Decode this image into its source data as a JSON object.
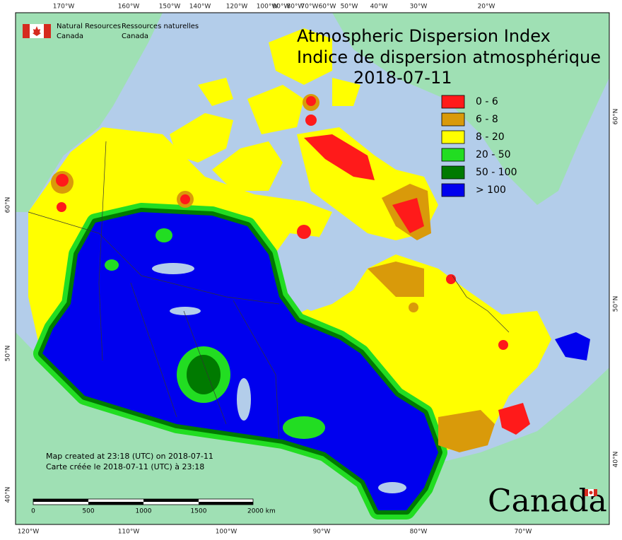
{
  "header": {
    "agency_en": [
      "Natural Resources",
      "Canada"
    ],
    "agency_fr": [
      "Ressources naturelles",
      "Canada"
    ],
    "title_en": "Atmospheric Dispersion Index",
    "title_fr": "Indice de dispersion atmosphérique",
    "date": "2018-07-11"
  },
  "legend": {
    "items": [
      {
        "label": "0 - 6",
        "color": "#ff1a1a"
      },
      {
        "label": "6 - 8",
        "color": "#d99a0a"
      },
      {
        "label": "8 - 20",
        "color": "#ffff00"
      },
      {
        "label": "20 - 50",
        "color": "#22dd22"
      },
      {
        "label": "50 - 100",
        "color": "#007a00"
      },
      {
        "label": "> 100",
        "color": "#0000ee"
      }
    ]
  },
  "graticule": {
    "top": [
      "170°W",
      "160°W",
      "150°W",
      "140°W",
      "120°W",
      "100°W",
      "90°W",
      "80°W",
      "70°W",
      "60°W",
      "50°W",
      "40°W",
      "30°W",
      "20°W"
    ],
    "bottom": [
      "120°W",
      "110°W",
      "100°W",
      "90°W",
      "80°W",
      "70°W"
    ],
    "left": [
      "60°N",
      "50°N",
      "40°N"
    ],
    "right": [
      "60°N",
      "50°N",
      "40°N"
    ]
  },
  "footnote": [
    "Map created at 23:18 (UTC) on 2018-07-11",
    "Carte créée le 2018-07-11 (UTC) à 23:18"
  ],
  "scale_bar": {
    "labels": [
      "0",
      "500",
      "1000",
      "1500",
      "2000 km"
    ]
  },
  "wordmark": "Canada"
}
